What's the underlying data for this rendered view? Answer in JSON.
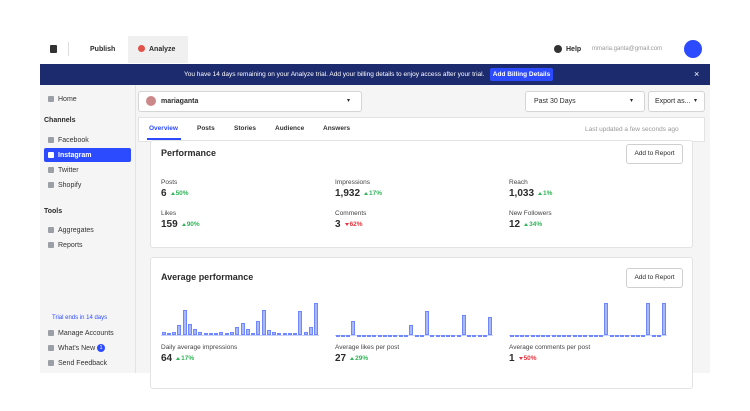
{
  "topbar": {
    "publish": "Publish",
    "analyze": "Analyze",
    "help": "Help",
    "email": "mmaria.ganta@gmail.com"
  },
  "banner": {
    "text": "You have 14 days remaining on your Analyze trial. Add your billing details to enjoy access after your trial.",
    "button": "Add Billing Details",
    "close": "×"
  },
  "sidebar": {
    "home": "Home",
    "channels_heading": "Channels",
    "channels": [
      "Facebook",
      "Instagram",
      "Twitter",
      "Shopify"
    ],
    "tools_heading": "Tools",
    "tools": [
      "Aggregates",
      "Reports"
    ],
    "trial": "Trial ends in 14 days",
    "manage": "Manage Accounts",
    "whats_new": "What's New",
    "whats_new_badge": "1",
    "feedback": "Send Feedback"
  },
  "toolbar": {
    "account": "mariaganta",
    "date_range": "Past 30 Days",
    "export": "Export as..."
  },
  "tabs": {
    "items": [
      "Overview",
      "Posts",
      "Stories",
      "Audience",
      "Answers"
    ],
    "updated": "Last updated a few seconds ago"
  },
  "performance": {
    "title": "Performance",
    "button": "Add to Report",
    "metrics": [
      {
        "label": "Posts",
        "value": "6",
        "change": "50%",
        "direction": "up"
      },
      {
        "label": "Impressions",
        "value": "1,932",
        "change": "17%",
        "direction": "up"
      },
      {
        "label": "Reach",
        "value": "1,033",
        "change": "1%",
        "direction": "up"
      },
      {
        "label": "Likes",
        "value": "159",
        "change": "90%",
        "direction": "up"
      },
      {
        "label": "Comments",
        "value": "3",
        "change": "62%",
        "direction": "down"
      },
      {
        "label": "New Followers",
        "value": "12",
        "change": "34%",
        "direction": "up"
      }
    ]
  },
  "average": {
    "title": "Average performance",
    "button": "Add to Report",
    "metrics": [
      {
        "label": "Daily average impressions",
        "value": "64",
        "change": "17%",
        "direction": "up",
        "bars": [
          3,
          2,
          3,
          10,
          25,
          11,
          6,
          3,
          2,
          2,
          2,
          3,
          2,
          3,
          8,
          12,
          6,
          2,
          14,
          25,
          5,
          3,
          2,
          2,
          2,
          2,
          24,
          3,
          8,
          32
        ]
      },
      {
        "label": "Average likes per post",
        "value": "27",
        "change": "29%",
        "direction": "up",
        "bars": [
          0,
          0,
          0,
          14,
          0,
          0,
          0,
          0,
          0,
          0,
          0,
          0,
          0,
          0,
          10,
          0,
          0,
          24,
          0,
          0,
          0,
          0,
          0,
          0,
          20,
          0,
          0,
          0,
          0,
          18
        ]
      },
      {
        "label": "Average comments per post",
        "value": "1",
        "change": "50%",
        "direction": "down",
        "bars": [
          0,
          0,
          0,
          0,
          0,
          0,
          0,
          0,
          0,
          0,
          0,
          0,
          0,
          0,
          0,
          0,
          0,
          0,
          32,
          0,
          0,
          0,
          0,
          0,
          0,
          0,
          32,
          0,
          0,
          32
        ]
      }
    ]
  }
}
